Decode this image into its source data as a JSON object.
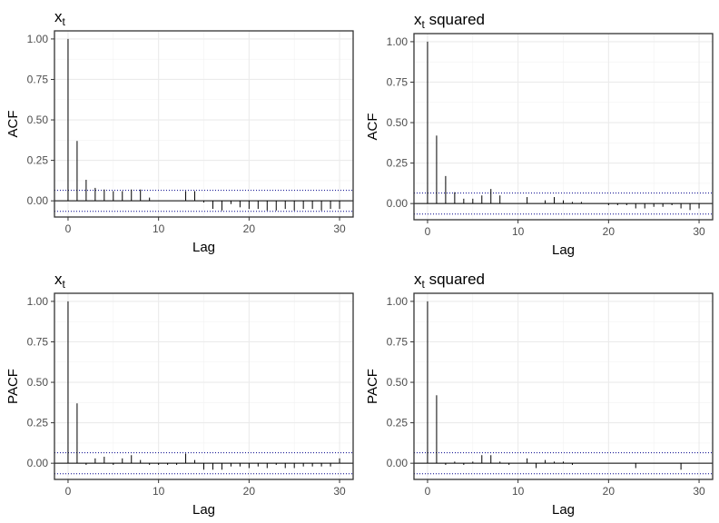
{
  "chart_data": [
    {
      "type": "bar",
      "title": "x",
      "title_subscript": "t",
      "title_suffix": "",
      "xlabel": "Lag",
      "ylabel": "ACF",
      "xlim": [
        -1.5,
        31.5
      ],
      "ylim": [
        -0.1,
        1.05
      ],
      "xticks": [
        0,
        10,
        20,
        30
      ],
      "yticks": [
        "1.00",
        "0.75",
        "0.50",
        "0.25",
        "0.00"
      ],
      "grid": true,
      "conf_band": [
        0.065,
        -0.065
      ],
      "x": [
        0,
        1,
        2,
        3,
        4,
        5,
        6,
        7,
        8,
        9,
        10,
        11,
        12,
        13,
        14,
        15,
        16,
        17,
        18,
        19,
        20,
        21,
        22,
        23,
        24,
        25,
        26,
        27,
        28,
        29,
        30
      ],
      "values": [
        1.0,
        0.37,
        0.13,
        0.08,
        0.07,
        0.06,
        0.06,
        0.07,
        0.07,
        0.02,
        0.0,
        0.0,
        0.0,
        0.06,
        0.06,
        -0.01,
        -0.05,
        -0.06,
        -0.02,
        -0.04,
        -0.05,
        -0.05,
        -0.06,
        -0.06,
        -0.05,
        -0.06,
        -0.05,
        -0.05,
        -0.06,
        -0.05,
        -0.05
      ]
    },
    {
      "type": "bar",
      "title": "x",
      "title_subscript": "t",
      "title_suffix": " squared",
      "xlabel": "Lag",
      "ylabel": "ACF",
      "xlim": [
        -1.5,
        31.5
      ],
      "ylim": [
        -0.1,
        1.05
      ],
      "xticks": [
        0,
        10,
        20,
        30
      ],
      "yticks": [
        "1.00",
        "0.75",
        "0.50",
        "0.25",
        "0.00"
      ],
      "grid": true,
      "conf_band": [
        0.065,
        -0.065
      ],
      "x": [
        0,
        1,
        2,
        3,
        4,
        5,
        6,
        7,
        8,
        9,
        10,
        11,
        12,
        13,
        14,
        15,
        16,
        17,
        18,
        19,
        20,
        21,
        22,
        23,
        24,
        25,
        26,
        27,
        28,
        29,
        30
      ],
      "values": [
        1.0,
        0.42,
        0.17,
        0.07,
        0.03,
        0.03,
        0.05,
        0.09,
        0.05,
        0.0,
        0.0,
        0.04,
        0.0,
        0.02,
        0.04,
        0.02,
        0.01,
        0.01,
        0.0,
        0.0,
        -0.01,
        -0.01,
        -0.01,
        -0.03,
        -0.03,
        -0.02,
        -0.02,
        -0.01,
        -0.03,
        -0.04,
        -0.03
      ]
    },
    {
      "type": "bar",
      "title": "x",
      "title_subscript": "t",
      "title_suffix": "",
      "xlabel": "Lag",
      "ylabel": "PACF",
      "xlim": [
        -1.5,
        31.5
      ],
      "ylim": [
        -0.1,
        1.05
      ],
      "xticks": [
        0,
        10,
        20,
        30
      ],
      "yticks": [
        "1.00",
        "0.75",
        "0.50",
        "0.25",
        "0.00"
      ],
      "grid": true,
      "conf_band": [
        0.065,
        -0.065
      ],
      "x": [
        0,
        1,
        2,
        3,
        4,
        5,
        6,
        7,
        8,
        9,
        10,
        11,
        12,
        13,
        14,
        15,
        16,
        17,
        18,
        19,
        20,
        21,
        22,
        23,
        24,
        25,
        26,
        27,
        28,
        29,
        30
      ],
      "values": [
        1.0,
        0.37,
        -0.01,
        0.03,
        0.04,
        -0.01,
        0.03,
        0.05,
        0.02,
        -0.01,
        -0.01,
        -0.01,
        -0.01,
        0.06,
        0.02,
        -0.04,
        -0.04,
        -0.04,
        -0.02,
        -0.02,
        -0.03,
        -0.02,
        -0.03,
        -0.01,
        -0.03,
        -0.03,
        -0.02,
        -0.02,
        -0.02,
        -0.02,
        0.03
      ]
    },
    {
      "type": "bar",
      "title": "x",
      "title_subscript": "t",
      "title_suffix": " squared",
      "xlabel": "Lag",
      "ylabel": "PACF",
      "xlim": [
        -1.5,
        31.5
      ],
      "ylim": [
        -0.1,
        1.05
      ],
      "xticks": [
        0,
        10,
        20,
        30
      ],
      "yticks": [
        "1.00",
        "0.75",
        "0.50",
        "0.25",
        "0.00"
      ],
      "grid": true,
      "conf_band": [
        0.065,
        -0.065
      ],
      "x": [
        0,
        1,
        2,
        3,
        4,
        5,
        6,
        7,
        8,
        9,
        10,
        11,
        12,
        13,
        14,
        15,
        16,
        17,
        18,
        19,
        20,
        21,
        22,
        23,
        24,
        25,
        26,
        27,
        28,
        29,
        30
      ],
      "values": [
        1.0,
        0.42,
        -0.01,
        0.01,
        -0.01,
        0.01,
        0.05,
        0.05,
        0.01,
        -0.01,
        0.0,
        0.03,
        -0.03,
        0.02,
        0.01,
        0.01,
        -0.01,
        0.0,
        0.0,
        0.0,
        0.0,
        0.0,
        0.0,
        -0.03,
        0.0,
        0.0,
        0.0,
        0.0,
        -0.04,
        0.0,
        0.0
      ]
    }
  ]
}
